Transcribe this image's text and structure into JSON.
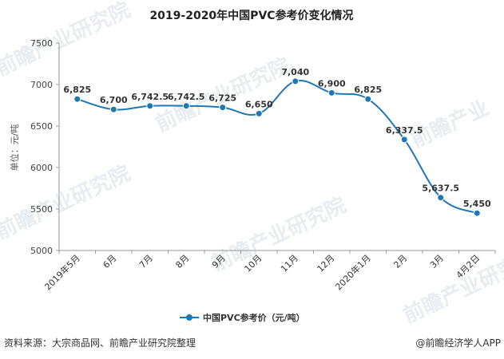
{
  "chart_data": {
    "type": "line",
    "title": "2019-2020年中国PVC参考价变化情况",
    "ylabel": "单位：元/吨",
    "xlabel": "",
    "ylim": [
      5000,
      7500
    ],
    "yticks": [
      "5000",
      "5500",
      "6000",
      "6500",
      "7000",
      "7500"
    ],
    "categories": [
      "2019年5月",
      "6月",
      "7月",
      "8月",
      "9月",
      "10月",
      "11月",
      "12月",
      "2020年1月",
      "2月",
      "3月",
      "4月2日"
    ],
    "series": [
      {
        "name": "中国PVC参考价（元/吨）",
        "values": [
          6825,
          6700,
          6742.5,
          6742.5,
          6725,
          6650,
          7040,
          6900,
          6825,
          6337.5,
          5637.5,
          5450
        ],
        "labels": [
          "6,825",
          "6,700",
          "6,742.5",
          "6,742.5",
          "6,725",
          "6,650",
          "7,040",
          "6,900",
          "6,825",
          "6,337.5",
          "5,637.5",
          "5,450"
        ],
        "color": "#1f77b4"
      }
    ],
    "grid": false,
    "legend_position": "bottom"
  },
  "footer": {
    "source": "资料来源：大宗商品网、前瞻产业研究院整理",
    "credit": "@前瞻经济学人APP"
  }
}
